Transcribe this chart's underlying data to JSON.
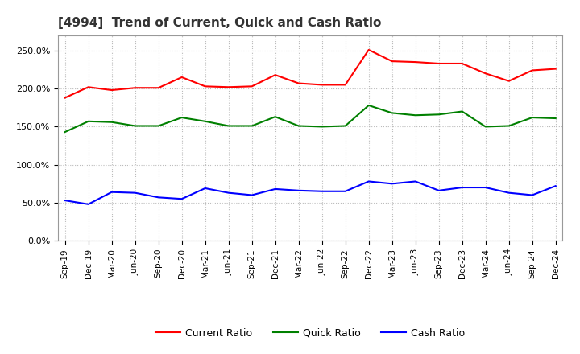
{
  "title": "[4994]  Trend of Current, Quick and Cash Ratio",
  "labels": [
    "Sep-19",
    "Dec-19",
    "Mar-20",
    "Jun-20",
    "Sep-20",
    "Dec-20",
    "Mar-21",
    "Jun-21",
    "Sep-21",
    "Dec-21",
    "Mar-22",
    "Jun-22",
    "Sep-22",
    "Dec-22",
    "Mar-23",
    "Jun-23",
    "Sep-23",
    "Dec-23",
    "Mar-24",
    "Jun-24",
    "Sep-24",
    "Dec-24"
  ],
  "current_ratio": [
    188,
    202,
    198,
    201,
    201,
    215,
    203,
    202,
    203,
    218,
    207,
    205,
    205,
    251,
    236,
    235,
    233,
    233,
    220,
    210,
    224,
    226
  ],
  "quick_ratio": [
    143,
    157,
    156,
    151,
    151,
    162,
    157,
    151,
    151,
    163,
    151,
    150,
    151,
    178,
    168,
    165,
    166,
    170,
    150,
    151,
    162,
    161
  ],
  "cash_ratio": [
    53,
    48,
    64,
    63,
    57,
    55,
    69,
    63,
    60,
    68,
    66,
    65,
    65,
    78,
    75,
    78,
    66,
    70,
    70,
    63,
    60,
    72
  ],
  "current_color": "#FF0000",
  "quick_color": "#008000",
  "cash_color": "#0000FF",
  "ylim": [
    0,
    270
  ],
  "yticks": [
    0,
    50,
    100,
    150,
    200,
    250
  ],
  "background_color": "#FFFFFF",
  "plot_bg_color": "#FFFFFF",
  "grid_color": "#BBBBBB",
  "legend_labels": [
    "Current Ratio",
    "Quick Ratio",
    "Cash Ratio"
  ],
  "figsize": [
    7.2,
    4.4
  ],
  "dpi": 100
}
